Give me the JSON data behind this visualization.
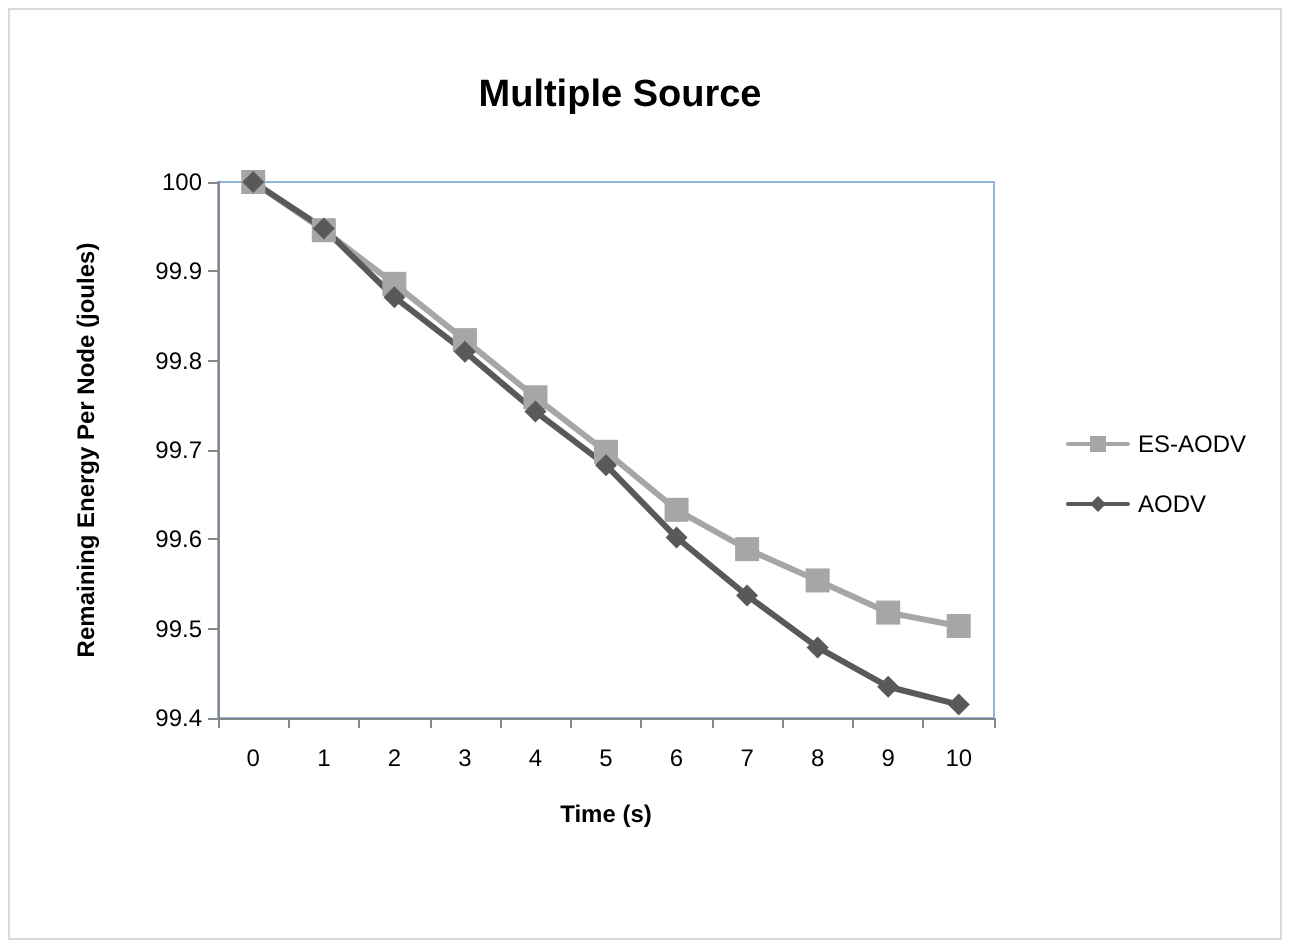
{
  "chart_data": {
    "type": "line",
    "title": "Multiple Source",
    "xlabel": "Time (s)",
    "ylabel": "Remaining Energy Per Node (joules)",
    "categories": [
      "0",
      "1",
      "2",
      "3",
      "4",
      "5",
      "6",
      "7",
      "8",
      "9",
      "10"
    ],
    "series": [
      {
        "name": "ES-AODV",
        "color": "#a6a6a6",
        "marker": "square",
        "values": [
          100,
          99.946,
          99.886,
          99.823,
          99.759,
          99.698,
          99.633,
          99.589,
          99.554,
          99.518,
          99.503
        ]
      },
      {
        "name": "AODV",
        "color": "#595959",
        "marker": "diamond",
        "values": [
          100,
          99.948,
          99.871,
          99.81,
          99.743,
          99.683,
          99.602,
          99.537,
          99.479,
          99.435,
          99.415
        ]
      }
    ],
    "ylim": [
      99.4,
      100
    ],
    "yticks": [
      99.4,
      99.5,
      99.6,
      99.7,
      99.8,
      99.9,
      100
    ],
    "grid": false,
    "legend": "right",
    "line_style": "solid"
  }
}
